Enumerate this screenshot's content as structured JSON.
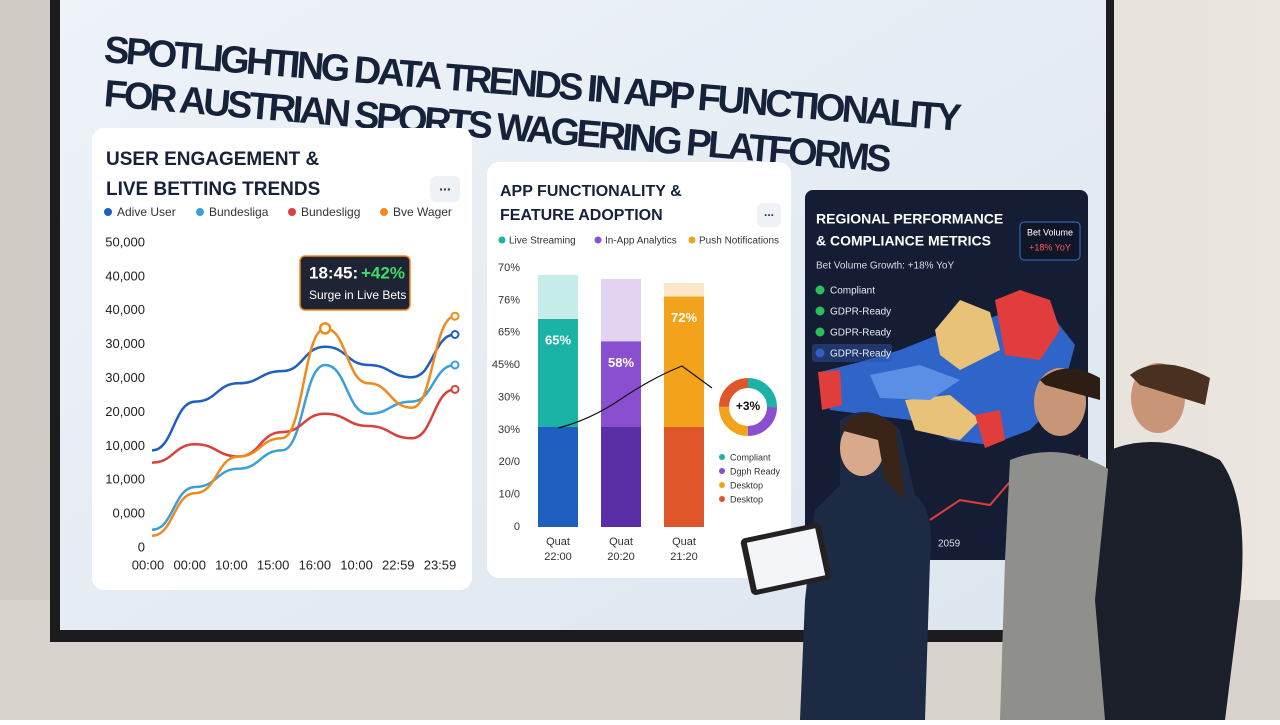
{
  "title_lines": [
    "SPOTLIGHTING DATA TRENDS IN APP FUNCTIONALITY",
    "FOR AUSTRIAN SPORTS WAGERING PLATFORMS"
  ],
  "panels": [
    {
      "title_lines": [
        "USER ENGAGEMENT &",
        "LIVE BETTING TRENDS"
      ],
      "menu": "...",
      "chart": {
        "type": "line",
        "categories": [
          "00:00",
          "00:00",
          "10:00",
          "15:00",
          "16:00",
          "10:00",
          "22:59",
          "23:59"
        ],
        "ylim": [
          0,
          50000
        ],
        "y_axis_labels": [
          "50,000",
          "40,000",
          "40,000",
          "30,000",
          "30,000",
          "20,000",
          "10,000",
          "10,000",
          "0,000",
          "0"
        ],
        "series": [
          {
            "name": "Adive User",
            "color": "#1f5fbf",
            "values": [
              16000,
              24000,
              27000,
              29000,
              33000,
              30000,
              28000,
              35000
            ]
          },
          {
            "name": "Bundesliga",
            "color": "#3aa0d8",
            "values": [
              3000,
              10000,
              13000,
              16000,
              30000,
              22000,
              24000,
              30000
            ]
          },
          {
            "name": "Bundesligg",
            "color": "#d9413a",
            "values": [
              14000,
              17000,
              15000,
              19000,
              22000,
              20000,
              18000,
              26000
            ]
          },
          {
            "name": "Bve Wager",
            "color": "#f08a1c",
            "values": [
              2000,
              9000,
              15000,
              18000,
              36000,
              27000,
              23000,
              38000
            ]
          }
        ],
        "annotation": {
          "headline": "18:45:",
          "change": "+42%",
          "text": "Surge in Live Bets"
        }
      }
    },
    {
      "title_lines": [
        "APP FUNCTIONALITY &",
        "FEATURE ADOPTION"
      ],
      "menu": "...",
      "chart": {
        "type": "bar",
        "legend": [
          {
            "name": "Live Streaming",
            "color": "#1bb3a6"
          },
          {
            "name": "In-App Analytics",
            "color": "#8a4fd0"
          },
          {
            "name": "Push Notifications",
            "color": "#f2a21b"
          }
        ],
        "y_axis_labels": [
          "70%",
          "76%",
          "65%",
          "45%0",
          "30%",
          "30%",
          "20/0",
          "10/0",
          "0"
        ],
        "categories": [
          "Quat\n22:00",
          "Quat\n20:20",
          "Quat\n21:20"
        ],
        "values": [
          65,
          58,
          72
        ],
        "value_labels": [
          "65%",
          "58%",
          "72%"
        ],
        "donut": {
          "center": "+3%",
          "legend": [
            {
              "name": "Compliant",
              "color": "#1bb3a6"
            },
            {
              "name": "Dgph Ready",
              "color": "#8a4fd0"
            },
            {
              "name": "Desktop",
              "color": "#f2a21b"
            },
            {
              "name": "Desktop",
              "color": "#e0562b"
            }
          ]
        }
      }
    },
    {
      "title_lines": [
        "REGIONAL PERFORMANCE",
        "& COMPLIANCE METRICS"
      ],
      "badge": [
        "Bet Volume",
        "+18% YoY"
      ],
      "growth": "Bet Volume Growth: +18% YoY",
      "checklist": [
        "Compliant",
        "GDPR-Ready",
        "GDPR-Ready",
        "GDPR-Ready"
      ],
      "footer": "2059"
    }
  ]
}
